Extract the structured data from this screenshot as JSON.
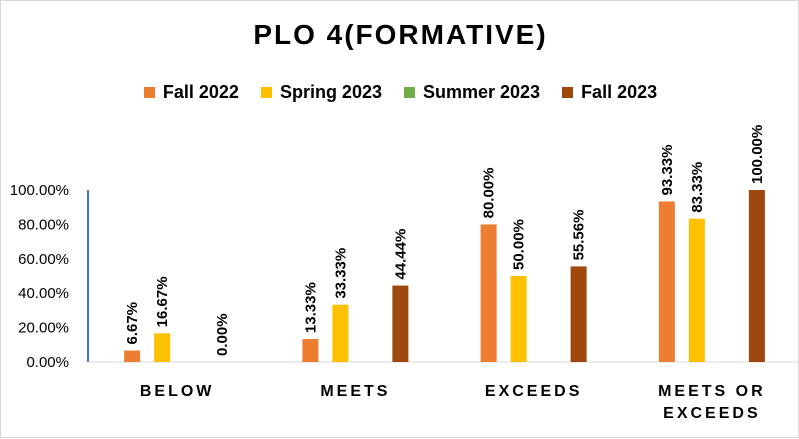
{
  "chart_data": {
    "type": "bar",
    "title": "PLO 4(FORMATIVE)",
    "categories": [
      [
        "BELOW"
      ],
      [
        "MEETS"
      ],
      [
        "EXCEEDS"
      ],
      [
        "MEETS OR",
        "EXCEEDS"
      ]
    ],
    "series": [
      {
        "name": "Fall 2022",
        "color": "#ED7D31",
        "values": [
          6.67,
          13.33,
          80.0,
          93.33
        ],
        "labels": [
          "6.67%",
          "13.33%",
          "80.00%",
          "93.33%"
        ]
      },
      {
        "name": "Spring 2023",
        "color": "#FFC000",
        "values": [
          16.67,
          33.33,
          50.0,
          83.33
        ],
        "labels": [
          "16.67%",
          "33.33%",
          "50.00%",
          "83.33%"
        ]
      },
      {
        "name": "Summer 2023",
        "color": "#70AD47",
        "values": [
          null,
          null,
          null,
          null
        ],
        "labels": [
          "",
          "",
          "",
          ""
        ]
      },
      {
        "name": "Fall 2023",
        "color": "#9E480E",
        "values": [
          0.0,
          44.44,
          55.56,
          100.0
        ],
        "labels": [
          "0.00%",
          "44.44%",
          "55.56%",
          "100.00%"
        ]
      }
    ],
    "ylim": [
      0,
      100
    ],
    "yticks": [
      0,
      20,
      40,
      60,
      80,
      100
    ],
    "ytick_labels": [
      "0.00%",
      "20.00%",
      "40.00%",
      "60.00%",
      "80.00%",
      "100.00%"
    ],
    "xlabel": "",
    "ylabel": "",
    "legend_position": "top",
    "grid": false,
    "axis_color": "#4472C4"
  }
}
